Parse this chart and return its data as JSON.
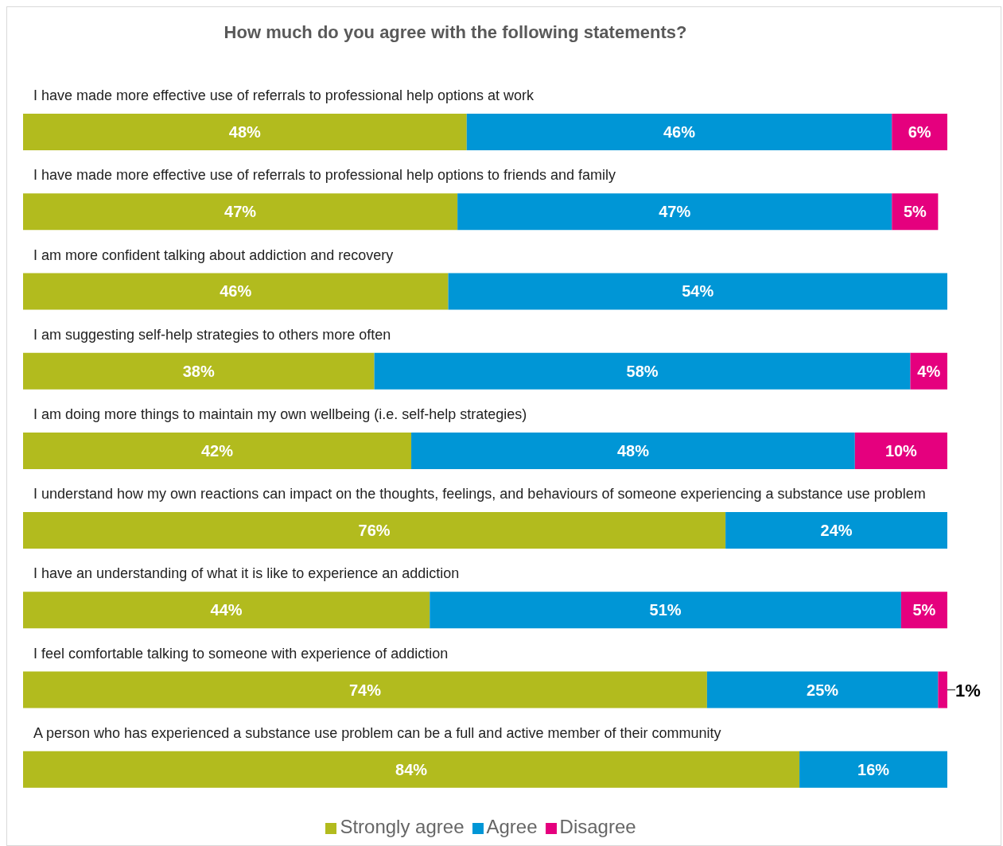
{
  "chart_data": {
    "type": "bar",
    "orientation": "horizontal",
    "stacked": true,
    "title": "How much do you agree with the following statements?",
    "categories": [
      "I have made more effective use of referrals to professional help options at work",
      "I have made more effective use of referrals to professional help options to friends and family",
      "I am more confident talking about addiction and recovery",
      "I am suggesting self-help strategies to others more often",
      "I am doing more things to maintain my own wellbeing (i.e. self-help strategies)",
      "I understand how my own reactions can impact on the thoughts, feelings, and behaviours of someone experiencing a substance use problem",
      "I have an understanding of what it is like to experience an addiction",
      "I feel comfortable talking to someone with experience of addiction",
      "A person who has experienced a substance use problem can be a full and active member of their community"
    ],
    "series": [
      {
        "name": "Strongly agree",
        "color": "#b2bb1e",
        "values": [
          48,
          47,
          46,
          38,
          42,
          76,
          44,
          74,
          84
        ],
        "value_labels": [
          "48%",
          "47%",
          "46%",
          "38%",
          "42%",
          "76%",
          "44%",
          "74%",
          "84%"
        ]
      },
      {
        "name": "Agree",
        "color": "#0096d6",
        "values": [
          46,
          47,
          54,
          58,
          48,
          24,
          51,
          25,
          16
        ],
        "value_labels": [
          "46%",
          "47%",
          "54%",
          "58%",
          "48%",
          "24%",
          "51%",
          "25%",
          "16%"
        ]
      },
      {
        "name": "Disagree",
        "color": "#e5007e",
        "values": [
          6,
          5,
          null,
          4,
          10,
          null,
          5,
          1,
          null
        ],
        "value_labels": [
          "6%",
          "5%",
          null,
          "4%",
          "10%",
          null,
          "5%",
          "1%",
          null
        ]
      }
    ],
    "legend": "bottom",
    "grid": false
  }
}
